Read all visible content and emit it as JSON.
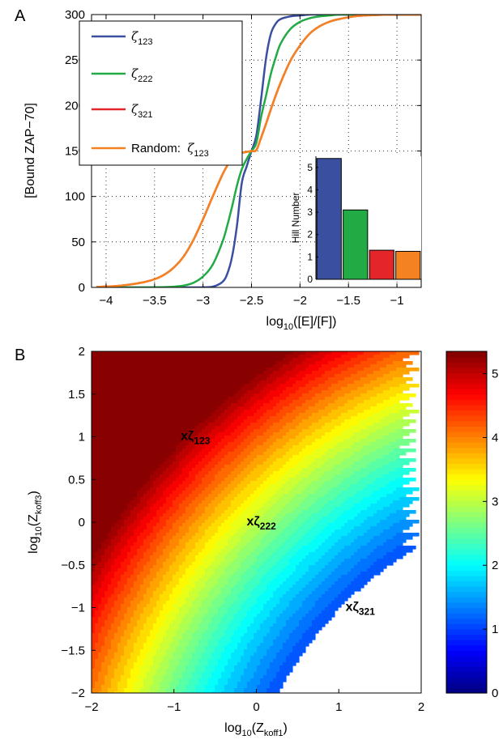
{
  "panels": {
    "a": "A",
    "b": "B"
  },
  "chart_data": [
    {
      "type": "line",
      "xlabel": {
        "main": "log",
        "sub": "10",
        "tail": "([E]/[F])"
      },
      "ylabel": "[Bound ZAP−70]",
      "xlim": [
        -4.15,
        -0.75
      ],
      "ylim": [
        0,
        300
      ],
      "grid": "dotted",
      "xticks": [
        -4,
        -3.5,
        -3,
        -2.5,
        -2,
        -1.5,
        -1
      ],
      "xtick_labels": [
        "−4",
        "−3.5",
        "−3",
        "−2.5",
        "−2",
        "−1.5",
        "−1"
      ],
      "yticks": [
        0,
        50,
        100,
        150,
        200,
        250,
        300
      ],
      "ytick_labels": [
        "0",
        "50",
        "100",
        "150",
        "200",
        "250",
        "300"
      ],
      "legend_position": "top-left",
      "x": [
        -4.1,
        -4.0,
        -3.9,
        -3.8,
        -3.7,
        -3.6,
        -3.5,
        -3.4,
        -3.3,
        -3.2,
        -3.1,
        -3.0,
        -2.9,
        -2.8,
        -2.75,
        -2.7,
        -2.65,
        -2.6,
        -2.55,
        -2.5,
        -2.45,
        -2.4,
        -2.35,
        -2.3,
        -2.25,
        -2.2,
        -2.1,
        -2.0,
        -1.9,
        -1.8,
        -1.7,
        -1.6,
        -1.5,
        -1.4,
        -1.3,
        -1.2,
        -1.1,
        -1.0,
        -0.9,
        -0.8,
        -0.75
      ],
      "series": [
        {
          "name": "ζ123",
          "symbol": "ζ",
          "sub": "123",
          "color": "#3a4fa0",
          "values": [
            0,
            0,
            0,
            0,
            0,
            0,
            0,
            0,
            0,
            0,
            0,
            0.1,
            0.8,
            6,
            15,
            34,
            68,
            115,
            133,
            150,
            167,
            208,
            252,
            279,
            290,
            295,
            298,
            299,
            300,
            300,
            300,
            300,
            300,
            300,
            300,
            300,
            300,
            300,
            300,
            300,
            300
          ]
        },
        {
          "name": "ζ222",
          "symbol": "ζ",
          "sub": "222",
          "color": "#22aa44",
          "values": [
            0,
            0,
            0,
            0,
            0,
            0,
            0.1,
            0.3,
            0.8,
            2,
            5,
            12,
            25,
            50,
            68,
            89,
            112,
            130,
            141,
            150,
            159,
            188,
            211,
            235,
            253,
            268,
            284,
            292,
            296,
            298,
            299,
            300,
            300,
            300,
            300,
            300,
            300,
            300,
            300,
            300,
            300
          ]
        },
        {
          "name": "ζ321",
          "symbol": "ζ",
          "sub": "321",
          "color": "#e2262a",
          "values": [
            0.5,
            1,
            1.5,
            2.5,
            4,
            6,
            9,
            14,
            22,
            34,
            52,
            75,
            100,
            124,
            134,
            142,
            146,
            148,
            149,
            150,
            151,
            165,
            180,
            196,
            211,
            225,
            249,
            266,
            279,
            287,
            292,
            295,
            297,
            298.5,
            299.2,
            299.6,
            299.8,
            300,
            300,
            300,
            300
          ]
        },
        {
          "name": "Random: ζ123",
          "prefix": "Random:  ",
          "symbol": "ζ",
          "sub": "123",
          "color": "#f58220",
          "values": [
            0.5,
            1,
            1.5,
            2.5,
            4,
            6,
            9,
            14,
            22,
            34,
            52,
            75,
            100,
            124,
            134,
            142,
            146,
            148,
            149,
            150,
            151,
            165,
            180,
            196,
            211,
            225,
            249,
            266,
            279,
            287,
            292,
            295,
            297,
            298.5,
            299.2,
            299.6,
            299.8,
            300,
            300,
            300,
            300
          ]
        }
      ]
    },
    {
      "type": "bar",
      "ylabel": "Hill Number",
      "ylim": [
        0,
        5.5
      ],
      "yticks": [
        0,
        1,
        2,
        3,
        4,
        5
      ],
      "ytick_labels": [
        "0",
        "1",
        "2",
        "3",
        "4",
        "5"
      ],
      "categories": [
        "ζ123",
        "ζ222",
        "ζ321",
        "Random: ζ123"
      ],
      "values": [
        5.4,
        3.1,
        1.3,
        1.25
      ],
      "colors": [
        "#3a4fa0",
        "#22aa44",
        "#e2262a",
        "#f58220"
      ]
    },
    {
      "type": "heatmap",
      "style": "filled contour",
      "xlabel": {
        "main": "log",
        "sub": "10",
        "tail": "(Z",
        "sub2": "koff1",
        "close": ")"
      },
      "ylabel": {
        "main": "log",
        "sub": "10",
        "tail": "(Z",
        "sub2": "koff3",
        "close": ")"
      },
      "xlim": [
        -2,
        2
      ],
      "ylim": [
        -2,
        2
      ],
      "xticks": [
        -2,
        -1,
        0,
        1,
        2
      ],
      "xtick_labels": [
        "−2",
        "−1",
        "0",
        "1",
        "2"
      ],
      "yticks": [
        2,
        1.5,
        1,
        0.5,
        0,
        -0.5,
        -1,
        -1.5,
        -2
      ],
      "ytick_labels": [
        "2",
        "1.5",
        "1",
        "0.5",
        "0",
        "−0.5",
        "−1",
        "−1.5",
        "−2"
      ],
      "colorbar": {
        "range": [
          0,
          5.35
        ],
        "ticks": [
          0,
          1,
          2,
          3,
          4,
          5
        ],
        "tick_labels": [
          "0",
          "1",
          "2",
          "3",
          "4",
          "5"
        ],
        "colormap": "jet"
      },
      "annotations": [
        {
          "x": -0.8,
          "y": 1.0,
          "label": "xζ",
          "sub": "123"
        },
        {
          "x": 0.0,
          "y": 0.0,
          "label": "xζ",
          "sub": "222"
        },
        {
          "x": 1.2,
          "y": -1.0,
          "label": "xζ",
          "sub": "321"
        }
      ]
    }
  ]
}
